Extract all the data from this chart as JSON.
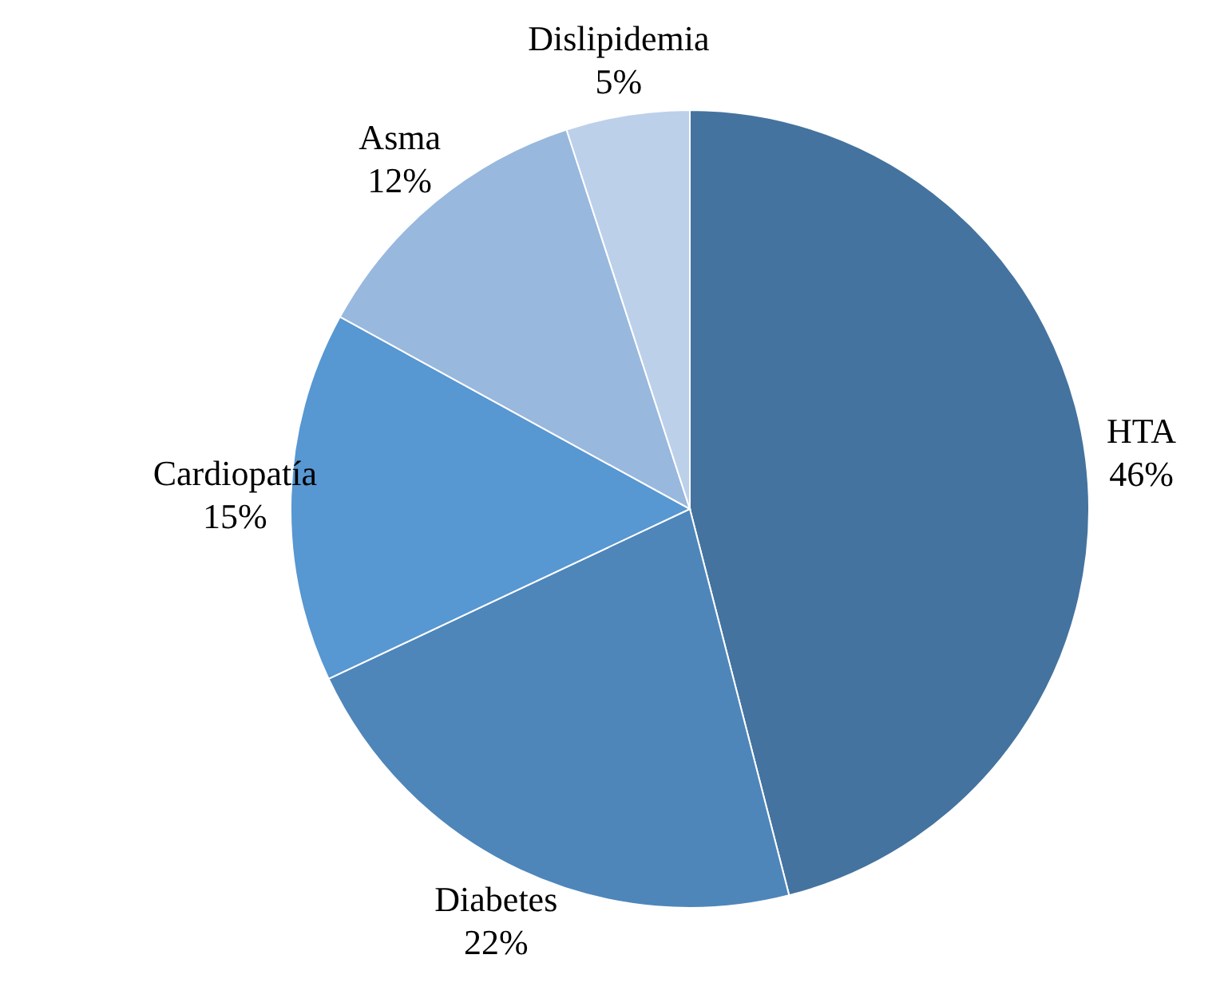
{
  "chart_data": {
    "type": "pie",
    "categories": [
      "HTA",
      "Diabetes",
      "Cardiopatía",
      "Asma",
      "Dislipidemia"
    ],
    "values": [
      46,
      22,
      15,
      12,
      5
    ],
    "value_labels": [
      "46%",
      "22%",
      "15%",
      "12%",
      "5%"
    ],
    "colors": [
      "#44739f",
      "#4e86ba",
      "#5797d2",
      "#98b8de",
      "#bcd0ea"
    ]
  }
}
